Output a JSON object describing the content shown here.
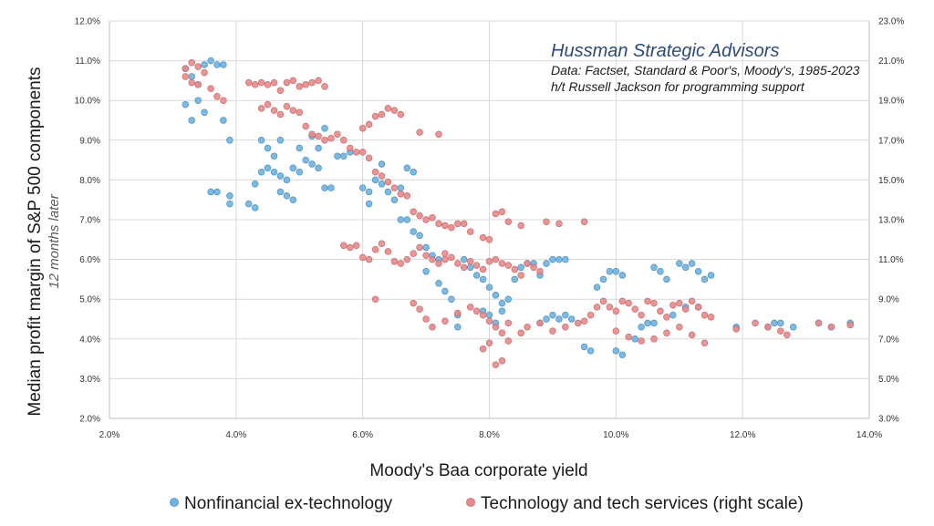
{
  "chart_data": {
    "type": "scatter",
    "title": "",
    "xlabel": "Moody's Baa corporate yield",
    "ylabel": "Median profit margin of S&P 500 components",
    "ylabel_sub": "12 months later",
    "xlim": [
      2.0,
      14.0
    ],
    "ylim": [
      2.0,
      12.0
    ],
    "y2lim": [
      3.0,
      23.0
    ],
    "x_ticks": [
      "2.0%",
      "4.0%",
      "6.0%",
      "8.0%",
      "10.0%",
      "12.0%",
      "14.0%"
    ],
    "y_ticks": [
      "2.0%",
      "3.0%",
      "4.0%",
      "5.0%",
      "6.0%",
      "7.0%",
      "8.0%",
      "9.0%",
      "10.0%",
      "11.0%",
      "12.0%"
    ],
    "y2_ticks": [
      "3.0%",
      "5.0%",
      "7.0%",
      "9.0%",
      "11.0%",
      "13.0%",
      "15.0%",
      "17.0%",
      "19.0%",
      "21.0%",
      "23.0%"
    ],
    "grid": true,
    "legend_position": "bottom",
    "annotation": {
      "title": "Hussman Strategic Advisors",
      "line1": "Data: Factset, Standard & Poor's, Moody's, 1985-2023",
      "line2": "h/t Russell Jackson for programming support"
    },
    "series": [
      {
        "name": "Nonfinancial ex-technology",
        "axis": "left",
        "color": "#6fb3e0",
        "points": [
          [
            3.2,
            10.8
          ],
          [
            3.3,
            10.6
          ],
          [
            3.4,
            10.4
          ],
          [
            3.5,
            10.9
          ],
          [
            3.6,
            11.0
          ],
          [
            3.7,
            10.9
          ],
          [
            3.8,
            10.9
          ],
          [
            3.2,
            9.9
          ],
          [
            3.5,
            9.7
          ],
          [
            3.8,
            9.5
          ],
          [
            3.9,
            9.0
          ],
          [
            3.6,
            7.7
          ],
          [
            3.7,
            7.7
          ],
          [
            3.9,
            7.6
          ],
          [
            3.9,
            7.4
          ],
          [
            4.2,
            7.4
          ],
          [
            4.3,
            7.3
          ],
          [
            4.3,
            7.9
          ],
          [
            4.4,
            8.2
          ],
          [
            4.5,
            8.3
          ],
          [
            4.6,
            8.2
          ],
          [
            4.7,
            8.1
          ],
          [
            4.8,
            8.0
          ],
          [
            4.9,
            8.3
          ],
          [
            4.7,
            7.7
          ],
          [
            4.8,
            7.6
          ],
          [
            4.9,
            7.5
          ],
          [
            5.0,
            8.2
          ],
          [
            5.1,
            8.5
          ],
          [
            5.2,
            8.4
          ],
          [
            5.3,
            8.3
          ],
          [
            5.4,
            7.8
          ],
          [
            5.5,
            7.8
          ],
          [
            4.4,
            9.0
          ],
          [
            4.5,
            8.8
          ],
          [
            4.6,
            8.6
          ],
          [
            4.7,
            9.0
          ],
          [
            5.0,
            8.8
          ],
          [
            5.2,
            9.1
          ],
          [
            5.4,
            9.3
          ],
          [
            5.3,
            8.8
          ],
          [
            5.6,
            8.6
          ],
          [
            5.7,
            8.6
          ],
          [
            5.8,
            8.7
          ],
          [
            6.0,
            7.8
          ],
          [
            6.1,
            7.7
          ],
          [
            6.1,
            7.4
          ],
          [
            6.2,
            8.0
          ],
          [
            6.3,
            8.4
          ],
          [
            6.3,
            7.9
          ],
          [
            6.4,
            7.7
          ],
          [
            6.5,
            7.5
          ],
          [
            6.6,
            7.8
          ],
          [
            6.7,
            8.3
          ],
          [
            6.8,
            8.2
          ],
          [
            6.6,
            7.0
          ],
          [
            6.7,
            7.0
          ],
          [
            6.8,
            6.7
          ],
          [
            6.9,
            6.6
          ],
          [
            7.0,
            6.3
          ],
          [
            7.1,
            6.1
          ],
          [
            7.2,
            6.0
          ],
          [
            7.0,
            5.7
          ],
          [
            7.2,
            5.4
          ],
          [
            7.3,
            5.2
          ],
          [
            7.4,
            5.0
          ],
          [
            7.5,
            4.6
          ],
          [
            7.5,
            4.3
          ],
          [
            7.6,
            6.0
          ],
          [
            7.7,
            5.8
          ],
          [
            7.8,
            5.6
          ],
          [
            7.9,
            5.5
          ],
          [
            8.0,
            5.3
          ],
          [
            8.1,
            5.1
          ],
          [
            8.2,
            4.9
          ],
          [
            8.0,
            4.6
          ],
          [
            7.9,
            4.7
          ],
          [
            8.1,
            4.4
          ],
          [
            8.2,
            4.7
          ],
          [
            8.3,
            5.0
          ],
          [
            8.4,
            5.5
          ],
          [
            8.5,
            5.8
          ],
          [
            8.6,
            5.9
          ],
          [
            8.7,
            5.9
          ],
          [
            8.8,
            5.6
          ],
          [
            8.9,
            5.9
          ],
          [
            9.0,
            6.0
          ],
          [
            9.1,
            6.0
          ],
          [
            9.2,
            6.0
          ],
          [
            8.8,
            4.4
          ],
          [
            8.9,
            4.5
          ],
          [
            9.0,
            4.6
          ],
          [
            9.1,
            4.5
          ],
          [
            9.2,
            4.6
          ],
          [
            9.3,
            4.5
          ],
          [
            9.5,
            3.8
          ],
          [
            9.6,
            3.7
          ],
          [
            9.7,
            5.3
          ],
          [
            9.8,
            5.5
          ],
          [
            9.9,
            5.7
          ],
          [
            10.0,
            5.7
          ],
          [
            10.1,
            5.6
          ],
          [
            10.0,
            3.7
          ],
          [
            10.1,
            3.6
          ],
          [
            10.3,
            4.0
          ],
          [
            10.4,
            4.3
          ],
          [
            10.5,
            4.4
          ],
          [
            10.6,
            5.8
          ],
          [
            10.7,
            5.7
          ],
          [
            10.8,
            5.5
          ],
          [
            11.0,
            5.9
          ],
          [
            11.1,
            5.8
          ],
          [
            11.2,
            5.9
          ],
          [
            11.3,
            5.7
          ],
          [
            11.4,
            5.5
          ],
          [
            11.5,
            5.6
          ],
          [
            11.3,
            4.8
          ],
          [
            11.1,
            4.8
          ],
          [
            10.9,
            4.6
          ],
          [
            10.6,
            4.4
          ],
          [
            11.9,
            4.3
          ],
          [
            12.4,
            4.3
          ],
          [
            12.5,
            4.4
          ],
          [
            12.6,
            4.4
          ],
          [
            12.8,
            4.3
          ],
          [
            13.2,
            4.4
          ],
          [
            13.4,
            4.3
          ],
          [
            13.7,
            4.4
          ],
          [
            3.4,
            10.0
          ],
          [
            3.3,
            9.5
          ]
        ]
      },
      {
        "name": "Technology and tech services (right scale)",
        "axis": "right",
        "color": "#e8898a",
        "points": [
          [
            3.2,
            20.6
          ],
          [
            3.3,
            20.9
          ],
          [
            3.4,
            20.7
          ],
          [
            3.5,
            20.4
          ],
          [
            3.2,
            20.2
          ],
          [
            3.3,
            19.9
          ],
          [
            3.4,
            19.8
          ],
          [
            3.6,
            19.6
          ],
          [
            3.7,
            19.2
          ],
          [
            3.8,
            19.0
          ],
          [
            4.2,
            19.9
          ],
          [
            4.3,
            19.8
          ],
          [
            4.4,
            19.9
          ],
          [
            4.5,
            19.8
          ],
          [
            4.6,
            19.9
          ],
          [
            4.7,
            19.5
          ],
          [
            4.8,
            19.9
          ],
          [
            4.9,
            20.0
          ],
          [
            5.0,
            19.7
          ],
          [
            5.1,
            19.8
          ],
          [
            5.2,
            19.9
          ],
          [
            5.3,
            20.0
          ],
          [
            5.4,
            19.7
          ],
          [
            4.4,
            18.6
          ],
          [
            4.5,
            18.8
          ],
          [
            4.6,
            18.5
          ],
          [
            4.7,
            18.3
          ],
          [
            4.8,
            18.7
          ],
          [
            4.9,
            18.5
          ],
          [
            5.0,
            18.4
          ],
          [
            5.1,
            17.7
          ],
          [
            5.2,
            17.3
          ],
          [
            5.3,
            17.2
          ],
          [
            5.4,
            17.0
          ],
          [
            5.5,
            17.1
          ],
          [
            5.6,
            17.3
          ],
          [
            5.7,
            17.0
          ],
          [
            5.8,
            16.6
          ],
          [
            5.9,
            16.4
          ],
          [
            6.0,
            17.6
          ],
          [
            6.1,
            17.8
          ],
          [
            6.2,
            18.2
          ],
          [
            6.3,
            18.3
          ],
          [
            6.4,
            18.6
          ],
          [
            6.5,
            18.5
          ],
          [
            6.6,
            18.3
          ],
          [
            6.9,
            17.4
          ],
          [
            7.2,
            17.3
          ],
          [
            6.0,
            16.4
          ],
          [
            6.1,
            16.1
          ],
          [
            6.2,
            15.4
          ],
          [
            6.3,
            15.2
          ],
          [
            6.4,
            14.9
          ],
          [
            6.5,
            14.6
          ],
          [
            6.6,
            14.3
          ],
          [
            6.7,
            14.2
          ],
          [
            6.8,
            13.4
          ],
          [
            6.9,
            13.2
          ],
          [
            7.0,
            13.0
          ],
          [
            7.1,
            13.1
          ],
          [
            7.2,
            12.8
          ],
          [
            7.3,
            12.7
          ],
          [
            7.4,
            12.6
          ],
          [
            7.5,
            12.8
          ],
          [
            7.6,
            12.8
          ],
          [
            7.7,
            12.4
          ],
          [
            7.9,
            12.1
          ],
          [
            8.0,
            12.0
          ],
          [
            8.1,
            13.3
          ],
          [
            8.2,
            13.4
          ],
          [
            8.3,
            12.9
          ],
          [
            8.5,
            12.7
          ],
          [
            5.7,
            11.7
          ],
          [
            5.8,
            11.6
          ],
          [
            5.9,
            11.7
          ],
          [
            6.0,
            11.1
          ],
          [
            6.1,
            11.0
          ],
          [
            6.2,
            11.5
          ],
          [
            6.3,
            11.8
          ],
          [
            6.4,
            11.4
          ],
          [
            6.5,
            10.9
          ],
          [
            6.6,
            10.8
          ],
          [
            6.7,
            11.0
          ],
          [
            6.8,
            11.3
          ],
          [
            6.9,
            11.6
          ],
          [
            7.0,
            11.2
          ],
          [
            7.1,
            11.0
          ],
          [
            7.2,
            10.8
          ],
          [
            7.3,
            11.3
          ],
          [
            7.4,
            11.1
          ],
          [
            7.5,
            10.8
          ],
          [
            7.6,
            10.6
          ],
          [
            7.7,
            10.9
          ],
          [
            7.8,
            10.7
          ],
          [
            7.9,
            10.5
          ],
          [
            8.0,
            10.9
          ],
          [
            8.1,
            11.0
          ],
          [
            8.2,
            10.8
          ],
          [
            8.3,
            10.7
          ],
          [
            8.4,
            10.5
          ],
          [
            8.5,
            10.2
          ],
          [
            8.6,
            10.8
          ],
          [
            8.7,
            10.6
          ],
          [
            8.8,
            10.4
          ],
          [
            6.2,
            9.0
          ],
          [
            6.8,
            8.8
          ],
          [
            6.9,
            8.5
          ],
          [
            7.0,
            8.0
          ],
          [
            7.1,
            7.6
          ],
          [
            7.3,
            7.9
          ],
          [
            7.5,
            8.3
          ],
          [
            7.7,
            8.6
          ],
          [
            7.8,
            8.4
          ],
          [
            7.9,
            8.2
          ],
          [
            8.0,
            7.9
          ],
          [
            8.1,
            7.6
          ],
          [
            8.2,
            7.3
          ],
          [
            8.3,
            7.8
          ],
          [
            7.9,
            6.5
          ],
          [
            8.0,
            6.8
          ],
          [
            8.1,
            5.7
          ],
          [
            8.2,
            5.9
          ],
          [
            8.3,
            6.9
          ],
          [
            8.5,
            7.3
          ],
          [
            8.6,
            7.6
          ],
          [
            8.8,
            7.8
          ],
          [
            9.0,
            7.4
          ],
          [
            9.2,
            7.6
          ],
          [
            9.4,
            7.8
          ],
          [
            9.5,
            7.9
          ],
          [
            9.6,
            8.2
          ],
          [
            9.7,
            8.6
          ],
          [
            9.8,
            8.9
          ],
          [
            9.9,
            8.6
          ],
          [
            10.0,
            8.4
          ],
          [
            10.1,
            8.9
          ],
          [
            10.2,
            8.8
          ],
          [
            10.3,
            8.5
          ],
          [
            10.4,
            8.2
          ],
          [
            10.5,
            8.9
          ],
          [
            10.6,
            8.8
          ],
          [
            10.7,
            8.4
          ],
          [
            10.8,
            8.1
          ],
          [
            10.9,
            8.7
          ],
          [
            11.0,
            8.8
          ],
          [
            11.1,
            8.5
          ],
          [
            11.2,
            8.9
          ],
          [
            11.3,
            8.6
          ],
          [
            11.4,
            8.2
          ],
          [
            11.5,
            8.1
          ],
          [
            10.0,
            7.4
          ],
          [
            10.2,
            7.1
          ],
          [
            10.4,
            6.9
          ],
          [
            10.6,
            7.0
          ],
          [
            10.8,
            7.3
          ],
          [
            11.0,
            7.6
          ],
          [
            11.2,
            7.2
          ],
          [
            11.4,
            6.8
          ],
          [
            11.9,
            7.5
          ],
          [
            12.2,
            7.8
          ],
          [
            12.4,
            7.6
          ],
          [
            12.6,
            7.4
          ],
          [
            12.7,
            7.2
          ],
          [
            13.2,
            7.8
          ],
          [
            13.4,
            7.6
          ],
          [
            13.7,
            7.7
          ],
          [
            8.9,
            12.9
          ],
          [
            9.1,
            12.8
          ],
          [
            9.5,
            12.9
          ],
          [
            7.3,
            11.0
          ]
        ]
      }
    ]
  }
}
